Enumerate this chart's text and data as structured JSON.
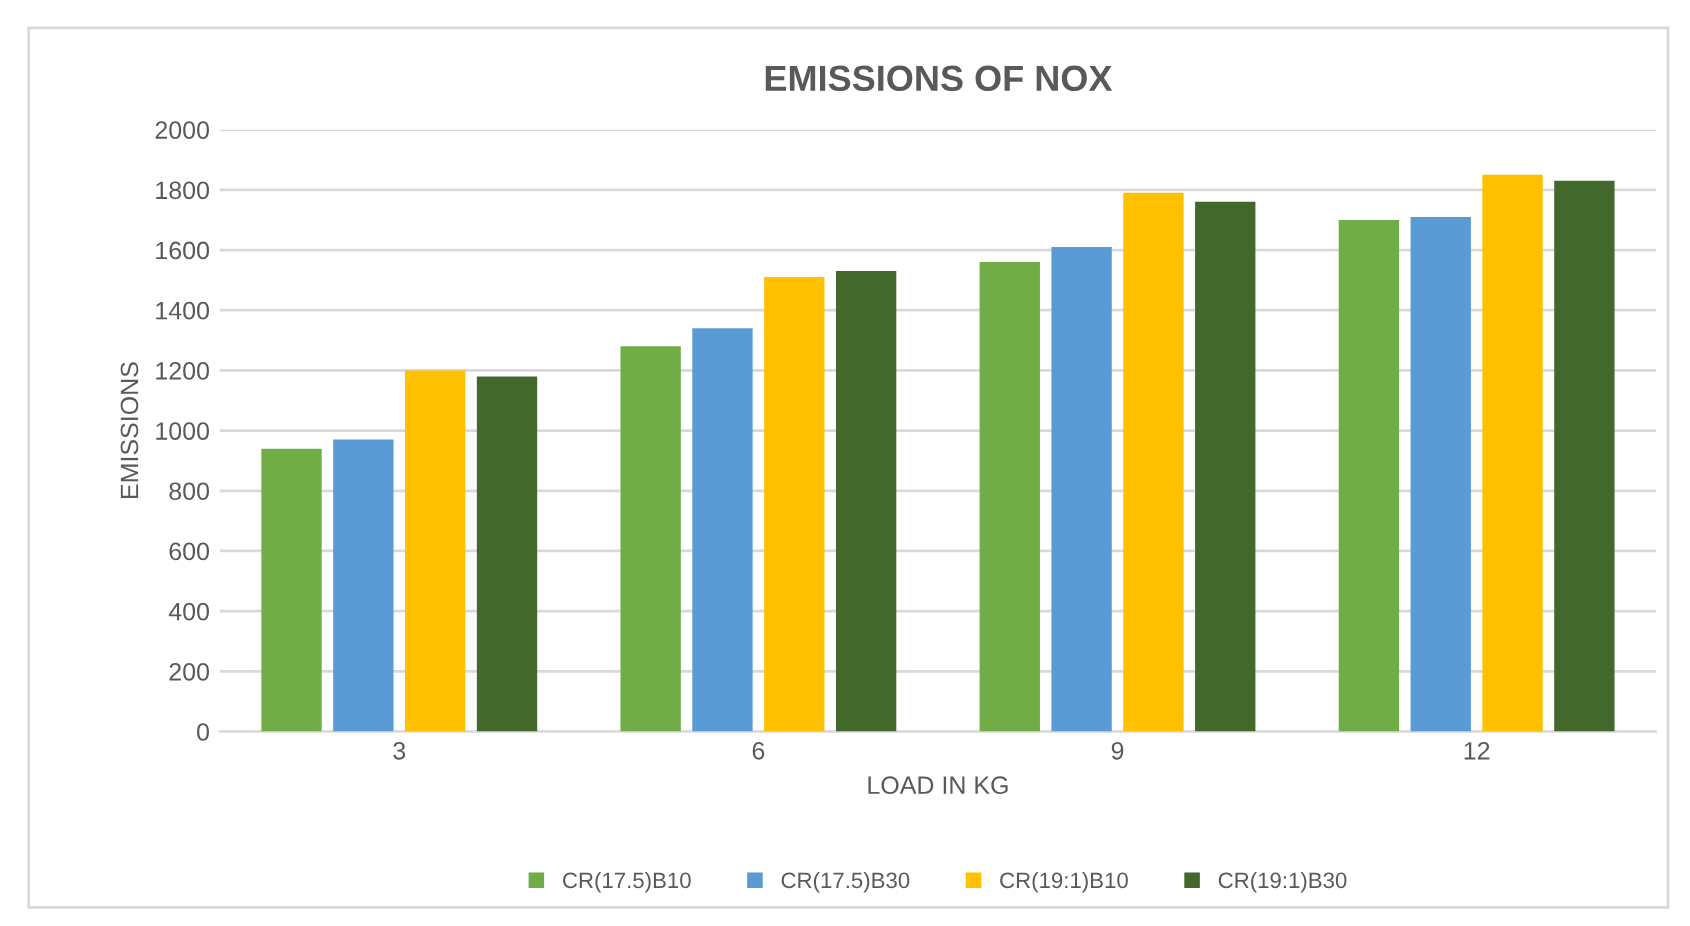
{
  "chart_data": {
    "type": "bar",
    "title": "EMISSIONS OF NOX",
    "xlabel": "LOAD IN KG",
    "ylabel": "EMISSIONS",
    "categories": [
      "3",
      "6",
      "9",
      "12"
    ],
    "series": [
      {
        "name": "CR(17.5)B10",
        "color": "#70ad47",
        "values": [
          940,
          1280,
          1560,
          1700
        ]
      },
      {
        "name": "CR(17.5)B30",
        "color": "#5b9bd5",
        "values": [
          970,
          1340,
          1610,
          1710
        ]
      },
      {
        "name": "CR(19:1)B10",
        "color": "#ffc000",
        "values": [
          1200,
          1510,
          1790,
          1850
        ]
      },
      {
        "name": "CR(19:1)B30",
        "color": "#43682b",
        "values": [
          1180,
          1530,
          1760,
          1830
        ]
      }
    ],
    "ylim": [
      0,
      2000
    ],
    "yticks": [
      0,
      200,
      400,
      600,
      800,
      1000,
      1200,
      1400,
      1600,
      1800,
      2000
    ],
    "grid": "y",
    "legend": "bottom"
  }
}
